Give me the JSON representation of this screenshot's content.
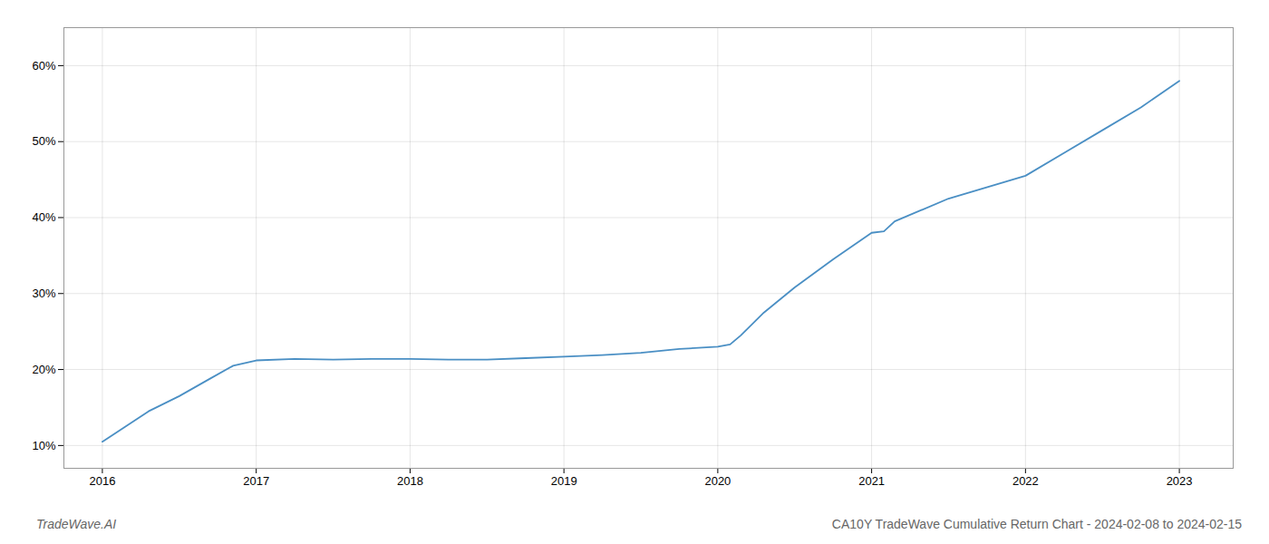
{
  "chart_data": {
    "type": "line",
    "title": "CA10Y TradeWave Cumulative Return Chart - 2024-02-08 to 2024-02-15",
    "annotations": [
      "TradeWave.AI"
    ],
    "x": [
      2016.0,
      2016.15,
      2016.3,
      2016.5,
      2016.7,
      2016.85,
      2017.0,
      2017.25,
      2017.5,
      2017.75,
      2018.0,
      2018.25,
      2018.5,
      2018.75,
      2019.0,
      2019.25,
      2019.5,
      2019.75,
      2020.0,
      2020.08,
      2020.15,
      2020.3,
      2020.5,
      2020.75,
      2021.0,
      2021.08,
      2021.15,
      2021.5,
      2022.0,
      2022.25,
      2022.5,
      2022.75,
      2023.0
    ],
    "values": [
      10.5,
      12.5,
      14.5,
      16.5,
      18.8,
      20.5,
      21.2,
      21.4,
      21.3,
      21.4,
      21.4,
      21.3,
      21.3,
      21.5,
      21.7,
      21.9,
      22.2,
      22.7,
      23.0,
      23.3,
      24.5,
      27.5,
      30.8,
      34.5,
      38.0,
      38.2,
      39.5,
      42.5,
      45.5,
      48.5,
      51.5,
      54.5,
      58.0
    ],
    "color": "#4a8fc4",
    "xlim": [
      2015.75,
      2023.35
    ],
    "xticks": [
      2016,
      2017,
      2018,
      2019,
      2020,
      2021,
      2022,
      2023
    ],
    "ylim": [
      7,
      65
    ],
    "yticks": [
      {
        "value": 10,
        "label": "10%"
      },
      {
        "value": 20,
        "label": "20%"
      },
      {
        "value": 30,
        "label": "30%"
      },
      {
        "value": 40,
        "label": "40%"
      },
      {
        "value": 50,
        "label": "50%"
      },
      {
        "value": 60,
        "label": "60%"
      }
    ],
    "grid": true
  }
}
